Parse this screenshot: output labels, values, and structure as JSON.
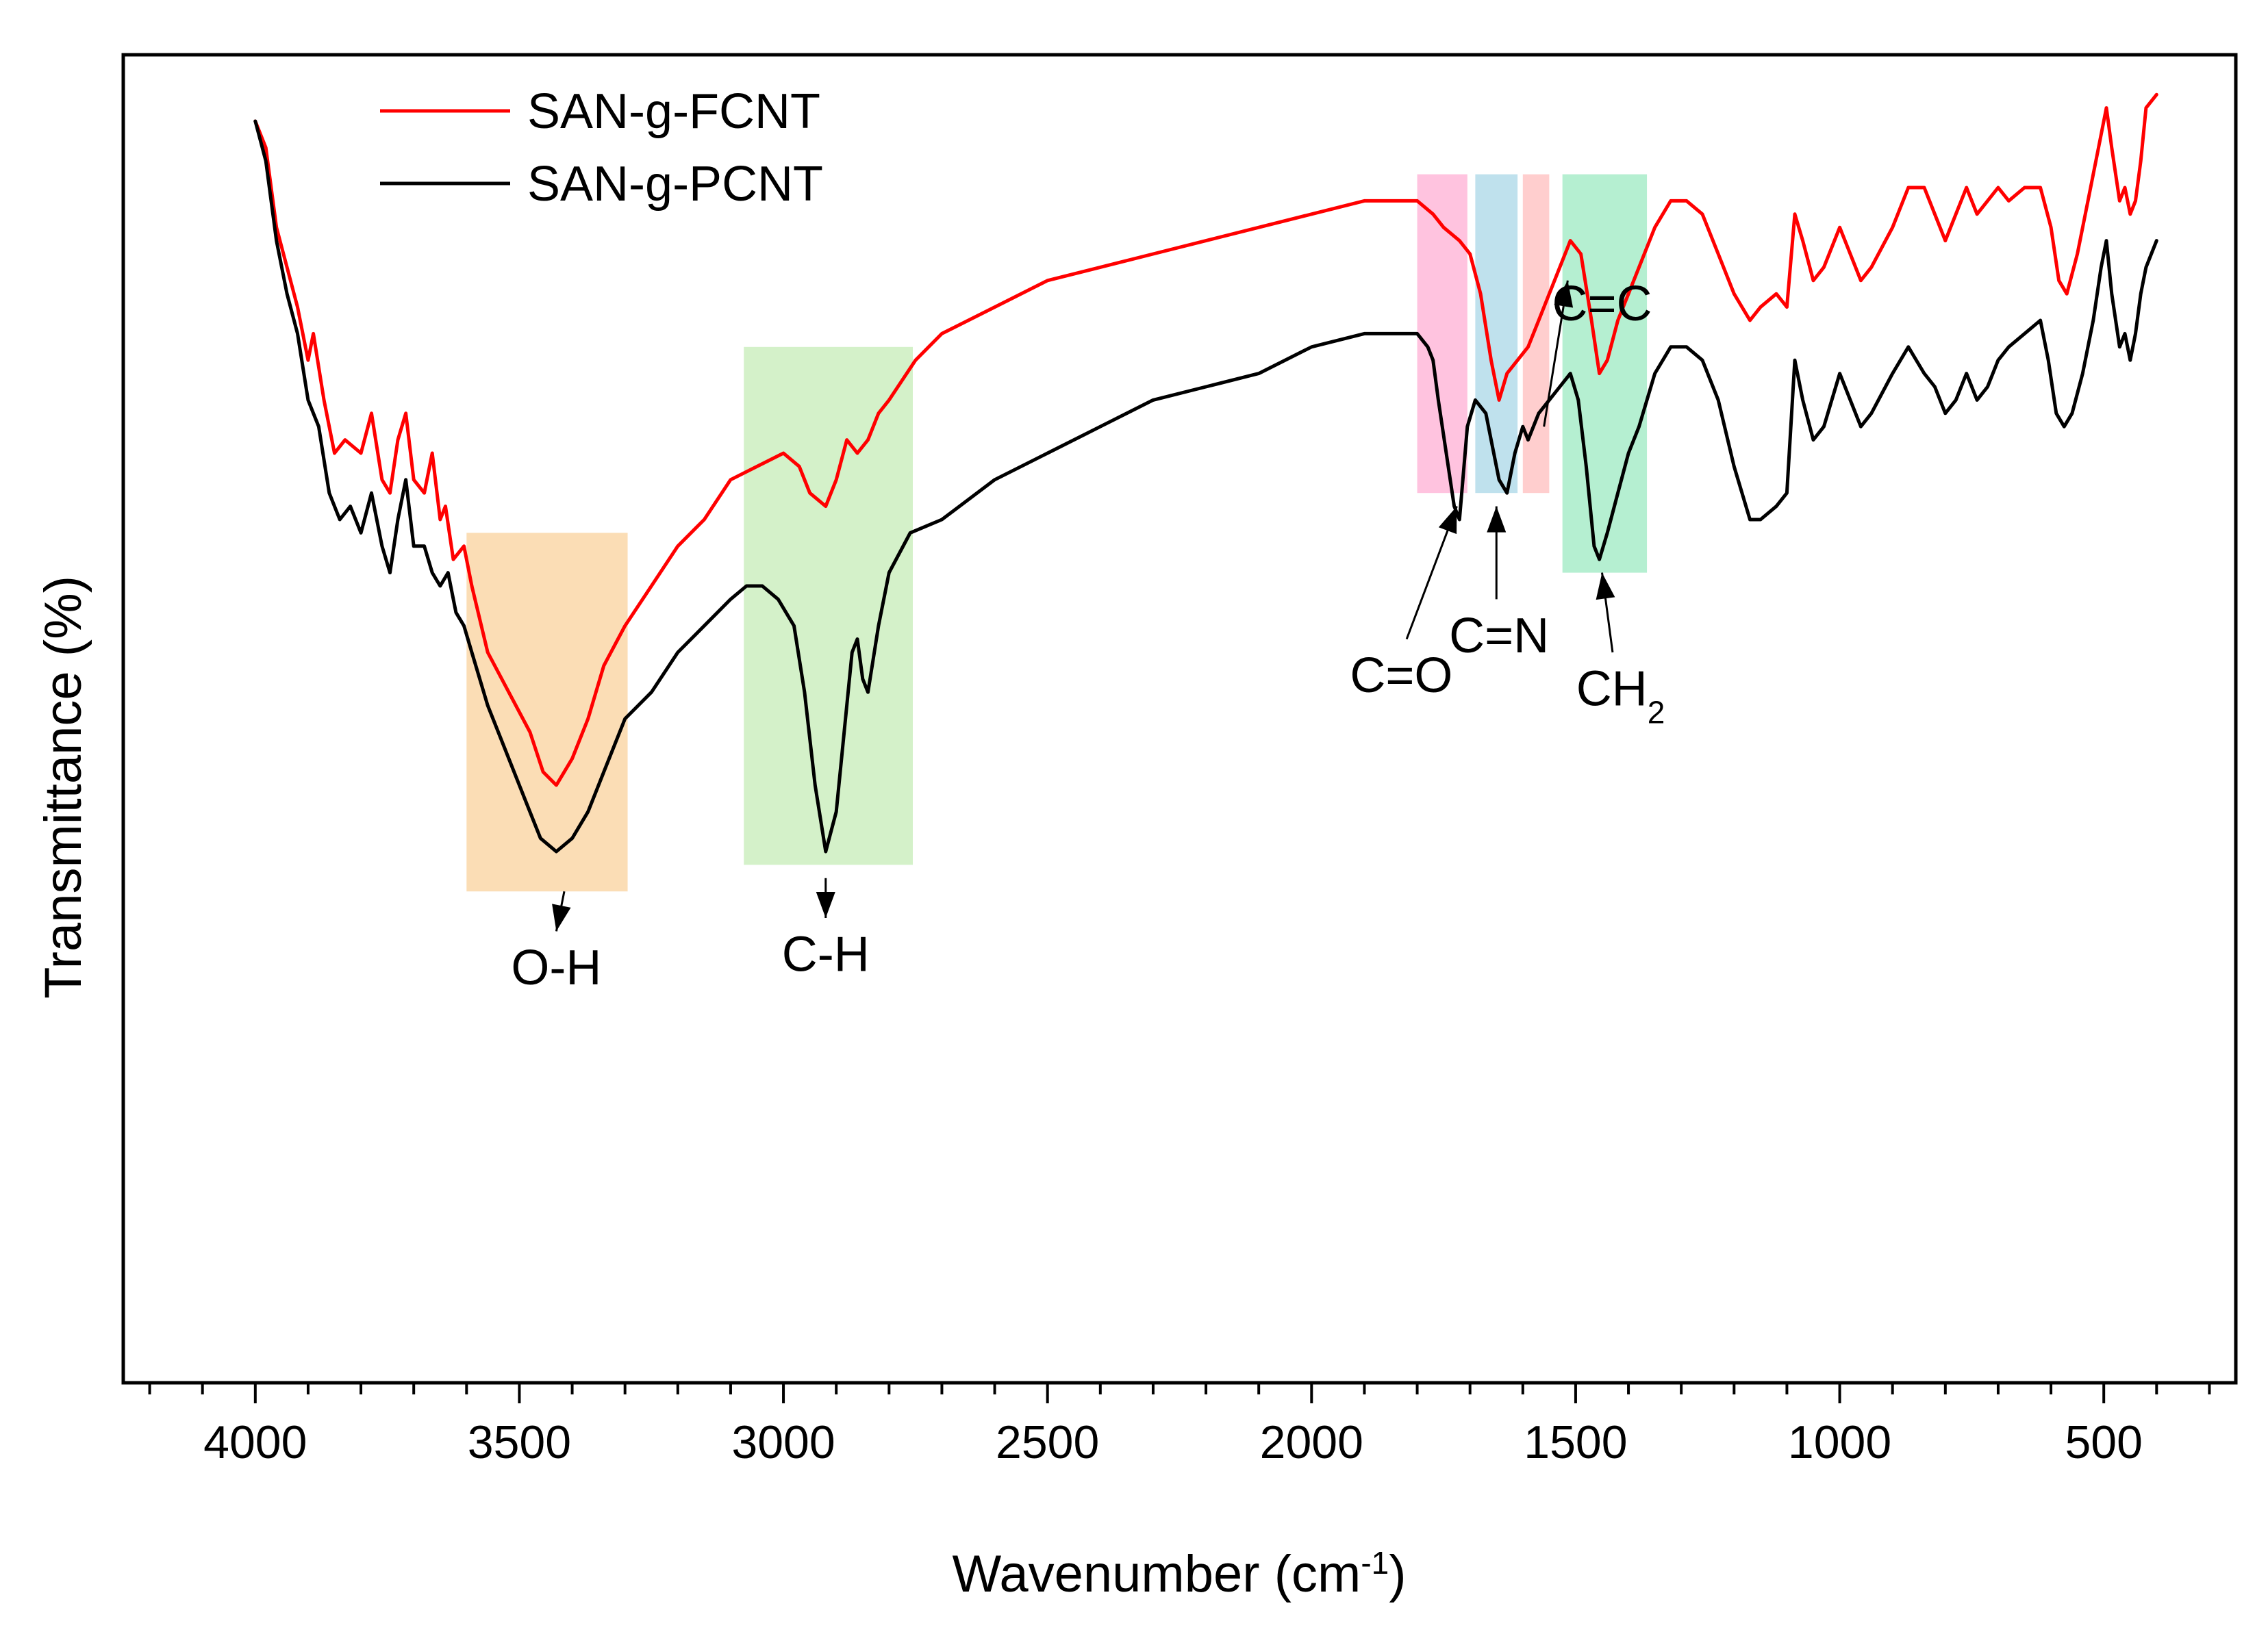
{
  "chart_data": {
    "type": "line",
    "title": "",
    "xlabel": "Wavenumber (cm",
    "xlabel_sup": "-1",
    "xlabel_end": ")",
    "ylabel": "Transmittance (%)",
    "xlim": [
      4250,
      250
    ],
    "ylim": [
      0,
      100
    ],
    "x_direction": "reversed",
    "grid": false,
    "legend_position": "top-left",
    "x_ticks": [
      4000,
      3500,
      3000,
      2500,
      2000,
      1500,
      1000,
      500
    ],
    "x_tick_labels": [
      "4000",
      "3500",
      "3000",
      "2500",
      "2000",
      "1500",
      "1000",
      "500"
    ],
    "y_ticks_shown": false,
    "series": [
      {
        "name": "SAN-g-FCNT",
        "color": "#ff0000",
        "points": [
          [
            4000,
            95
          ],
          [
            3980,
            93
          ],
          [
            3960,
            87
          ],
          [
            3940,
            84
          ],
          [
            3920,
            81
          ],
          [
            3900,
            77
          ],
          [
            3890,
            79
          ],
          [
            3870,
            74
          ],
          [
            3850,
            70
          ],
          [
            3830,
            71
          ],
          [
            3800,
            70
          ],
          [
            3780,
            73
          ],
          [
            3760,
            68
          ],
          [
            3745,
            67
          ],
          [
            3730,
            71
          ],
          [
            3715,
            73
          ],
          [
            3700,
            68
          ],
          [
            3680,
            67
          ],
          [
            3665,
            70
          ],
          [
            3650,
            65
          ],
          [
            3640,
            66
          ],
          [
            3625,
            62
          ],
          [
            3605,
            63
          ],
          [
            3590,
            60
          ],
          [
            3560,
            55
          ],
          [
            3520,
            52
          ],
          [
            3480,
            49
          ],
          [
            3455,
            46
          ],
          [
            3430,
            45
          ],
          [
            3400,
            47
          ],
          [
            3370,
            50
          ],
          [
            3340,
            54
          ],
          [
            3300,
            57
          ],
          [
            3250,
            60
          ],
          [
            3200,
            63
          ],
          [
            3150,
            65
          ],
          [
            3100,
            68
          ],
          [
            3050,
            69
          ],
          [
            3000,
            70
          ],
          [
            2970,
            69
          ],
          [
            2950,
            67
          ],
          [
            2920,
            66
          ],
          [
            2900,
            68
          ],
          [
            2880,
            71
          ],
          [
            2860,
            70
          ],
          [
            2840,
            71
          ],
          [
            2820,
            73
          ],
          [
            2800,
            74
          ],
          [
            2750,
            77
          ],
          [
            2700,
            79
          ],
          [
            2600,
            81
          ],
          [
            2500,
            83
          ],
          [
            2400,
            84
          ],
          [
            2300,
            85
          ],
          [
            2200,
            86
          ],
          [
            2100,
            87
          ],
          [
            2000,
            88
          ],
          [
            1900,
            89
          ],
          [
            1850,
            89
          ],
          [
            1800,
            89
          ],
          [
            1770,
            88
          ],
          [
            1750,
            87
          ],
          [
            1720,
            86
          ],
          [
            1700,
            85
          ],
          [
            1680,
            82
          ],
          [
            1660,
            77
          ],
          [
            1645,
            74
          ],
          [
            1630,
            76
          ],
          [
            1610,
            77
          ],
          [
            1590,
            78
          ],
          [
            1570,
            80
          ],
          [
            1550,
            82
          ],
          [
            1530,
            84
          ],
          [
            1510,
            86
          ],
          [
            1490,
            85
          ],
          [
            1470,
            80
          ],
          [
            1455,
            76
          ],
          [
            1440,
            77
          ],
          [
            1420,
            80
          ],
          [
            1400,
            82
          ],
          [
            1380,
            84
          ],
          [
            1350,
            87
          ],
          [
            1320,
            89
          ],
          [
            1290,
            89
          ],
          [
            1260,
            88
          ],
          [
            1230,
            85
          ],
          [
            1200,
            82
          ],
          [
            1170,
            80
          ],
          [
            1150,
            81
          ],
          [
            1120,
            82
          ],
          [
            1100,
            81
          ],
          [
            1085,
            88
          ],
          [
            1070,
            86
          ],
          [
            1050,
            83
          ],
          [
            1030,
            84
          ],
          [
            1000,
            87
          ],
          [
            980,
            85
          ],
          [
            960,
            83
          ],
          [
            940,
            84
          ],
          [
            900,
            87
          ],
          [
            870,
            90
          ],
          [
            840,
            90
          ],
          [
            820,
            88
          ],
          [
            800,
            86
          ],
          [
            780,
            88
          ],
          [
            760,
            90
          ],
          [
            740,
            88
          ],
          [
            720,
            89
          ],
          [
            700,
            90
          ],
          [
            680,
            89
          ],
          [
            650,
            90
          ],
          [
            620,
            90
          ],
          [
            600,
            87
          ],
          [
            585,
            83
          ],
          [
            570,
            82
          ],
          [
            550,
            85
          ],
          [
            530,
            89
          ],
          [
            510,
            93
          ],
          [
            495,
            96
          ],
          [
            485,
            93
          ],
          [
            470,
            89
          ],
          [
            460,
            90
          ],
          [
            450,
            88
          ],
          [
            440,
            89
          ],
          [
            430,
            92
          ],
          [
            420,
            96
          ],
          [
            400,
            97
          ]
        ]
      },
      {
        "name": "SAN-g-PCNT",
        "color": "#000000",
        "points": [
          [
            4000,
            95
          ],
          [
            3980,
            92
          ],
          [
            3960,
            86
          ],
          [
            3940,
            82
          ],
          [
            3920,
            79
          ],
          [
            3900,
            74
          ],
          [
            3880,
            72
          ],
          [
            3860,
            67
          ],
          [
            3840,
            65
          ],
          [
            3820,
            66
          ],
          [
            3800,
            64
          ],
          [
            3780,
            67
          ],
          [
            3760,
            63
          ],
          [
            3745,
            61
          ],
          [
            3730,
            65
          ],
          [
            3715,
            68
          ],
          [
            3700,
            63
          ],
          [
            3680,
            63
          ],
          [
            3665,
            61
          ],
          [
            3650,
            60
          ],
          [
            3635,
            61
          ],
          [
            3620,
            58
          ],
          [
            3605,
            57
          ],
          [
            3590,
            55
          ],
          [
            3560,
            51
          ],
          [
            3520,
            47
          ],
          [
            3490,
            44
          ],
          [
            3460,
            41
          ],
          [
            3430,
            40
          ],
          [
            3400,
            41
          ],
          [
            3370,
            43
          ],
          [
            3340,
            46
          ],
          [
            3300,
            50
          ],
          [
            3250,
            52
          ],
          [
            3200,
            55
          ],
          [
            3150,
            57
          ],
          [
            3100,
            59
          ],
          [
            3070,
            60
          ],
          [
            3040,
            60
          ],
          [
            3010,
            59
          ],
          [
            2980,
            57
          ],
          [
            2960,
            52
          ],
          [
            2940,
            45
          ],
          [
            2920,
            40
          ],
          [
            2900,
            43
          ],
          [
            2880,
            51
          ],
          [
            2870,
            55
          ],
          [
            2860,
            56
          ],
          [
            2850,
            53
          ],
          [
            2840,
            52
          ],
          [
            2820,
            57
          ],
          [
            2800,
            61
          ],
          [
            2760,
            64
          ],
          [
            2700,
            65
          ],
          [
            2600,
            68
          ],
          [
            2500,
            70
          ],
          [
            2400,
            72
          ],
          [
            2300,
            74
          ],
          [
            2200,
            75
          ],
          [
            2100,
            76
          ],
          [
            2000,
            78
          ],
          [
            1900,
            79
          ],
          [
            1850,
            79
          ],
          [
            1800,
            79
          ],
          [
            1780,
            78
          ],
          [
            1770,
            77
          ],
          [
            1760,
            74
          ],
          [
            1745,
            70
          ],
          [
            1730,
            66
          ],
          [
            1720,
            65
          ],
          [
            1705,
            72
          ],
          [
            1690,
            74
          ],
          [
            1670,
            73
          ],
          [
            1660,
            71
          ],
          [
            1645,
            68
          ],
          [
            1630,
            67
          ],
          [
            1615,
            70
          ],
          [
            1600,
            72
          ],
          [
            1590,
            71
          ],
          [
            1570,
            73
          ],
          [
            1550,
            74
          ],
          [
            1530,
            75
          ],
          [
            1510,
            76
          ],
          [
            1495,
            74
          ],
          [
            1480,
            69
          ],
          [
            1465,
            63
          ],
          [
            1455,
            62
          ],
          [
            1440,
            64
          ],
          [
            1420,
            67
          ],
          [
            1400,
            70
          ],
          [
            1380,
            72
          ],
          [
            1350,
            76
          ],
          [
            1320,
            78
          ],
          [
            1290,
            78
          ],
          [
            1260,
            77
          ],
          [
            1230,
            74
          ],
          [
            1200,
            69
          ],
          [
            1170,
            65
          ],
          [
            1150,
            65
          ],
          [
            1120,
            66
          ],
          [
            1100,
            67
          ],
          [
            1085,
            77
          ],
          [
            1070,
            74
          ],
          [
            1050,
            71
          ],
          [
            1030,
            72
          ],
          [
            1000,
            76
          ],
          [
            980,
            74
          ],
          [
            960,
            72
          ],
          [
            940,
            73
          ],
          [
            900,
            76
          ],
          [
            870,
            78
          ],
          [
            840,
            76
          ],
          [
            820,
            75
          ],
          [
            800,
            73
          ],
          [
            780,
            74
          ],
          [
            760,
            76
          ],
          [
            740,
            74
          ],
          [
            720,
            75
          ],
          [
            700,
            77
          ],
          [
            680,
            78
          ],
          [
            650,
            79
          ],
          [
            620,
            80
          ],
          [
            605,
            77
          ],
          [
            590,
            73
          ],
          [
            575,
            72
          ],
          [
            560,
            73
          ],
          [
            540,
            76
          ],
          [
            520,
            80
          ],
          [
            505,
            84
          ],
          [
            495,
            86
          ],
          [
            485,
            82
          ],
          [
            470,
            78
          ],
          [
            460,
            79
          ],
          [
            450,
            77
          ],
          [
            440,
            79
          ],
          [
            430,
            82
          ],
          [
            420,
            84
          ],
          [
            400,
            86
          ]
        ]
      }
    ],
    "bands": [
      {
        "x_start": 3600,
        "x_end": 3295,
        "y_bottom": 37,
        "y_top": 64,
        "color": "#fad7a8"
      },
      {
        "x_start": 3075,
        "x_end": 2755,
        "y_bottom": 39,
        "y_top": 78,
        "color": "#ccefc0"
      },
      {
        "x_start": 1800,
        "x_end": 1705,
        "y_bottom": 67,
        "y_top": 91,
        "color": "#ffb9d9"
      },
      {
        "x_start": 1690,
        "x_end": 1610,
        "y_bottom": 67,
        "y_top": 91,
        "color": "#b4dcea"
      },
      {
        "x_start": 1600,
        "x_end": 1550,
        "y_bottom": 67,
        "y_top": 91,
        "color": "#ffc6c6"
      },
      {
        "x_start": 1525,
        "x_end": 1365,
        "y_bottom": 61,
        "y_top": 91,
        "color": "#a8ecc9"
      }
    ],
    "annotations": [
      {
        "text": "O-H",
        "sub": "",
        "text_x": 3430,
        "text_y": 30,
        "arrow_from": [
          3415,
          37
        ],
        "arrow_to": [
          3430,
          34
        ]
      },
      {
        "text": "C-H",
        "sub": "",
        "text_x": 2920,
        "text_y": 31,
        "arrow_from": [
          2920,
          38
        ],
        "arrow_to": [
          2920,
          35
        ]
      },
      {
        "text": "C=O",
        "sub": "",
        "text_x": 1830,
        "text_y": 52,
        "arrow_from": [
          1820,
          56
        ],
        "arrow_to": [
          1725,
          66
        ]
      },
      {
        "text": "C=N",
        "sub": "",
        "text_x": 1645,
        "text_y": 55,
        "arrow_from": [
          1650,
          59
        ],
        "arrow_to": [
          1650,
          66
        ]
      },
      {
        "text": "C=C",
        "sub": "",
        "text_x": 1450,
        "text_y": 80,
        "arrow_from": [
          1560,
          72
        ],
        "arrow_to": [
          1515,
          83
        ]
      },
      {
        "text": "CH",
        "sub": "2",
        "text_x": 1415,
        "text_y": 51,
        "arrow_from": [
          1430,
          55
        ],
        "arrow_to": [
          1450,
          61
        ]
      }
    ]
  }
}
